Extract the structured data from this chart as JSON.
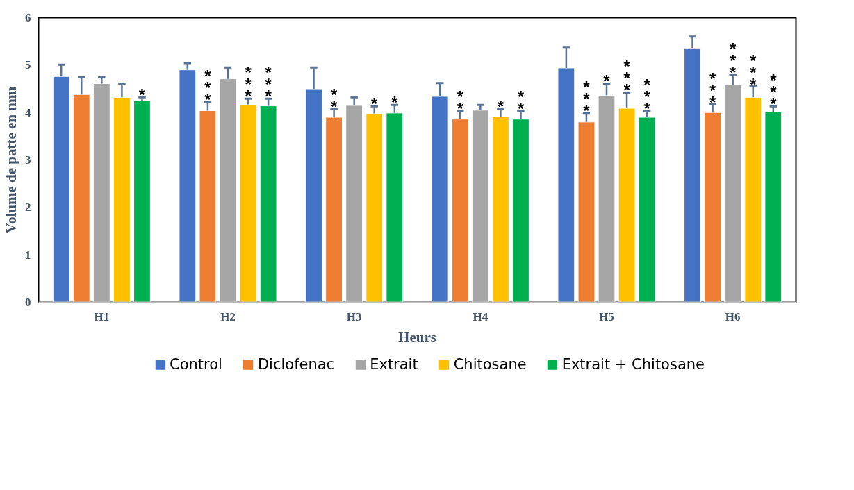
{
  "chart_data": {
    "type": "bar",
    "xlabel": "Heurs",
    "ylabel": "Volume de patte en mm",
    "categories": [
      "H1",
      "H2",
      "H3",
      "H4",
      "H5",
      "H6"
    ],
    "ylim": [
      0,
      6
    ],
    "yticks": [
      0,
      1,
      2,
      3,
      4,
      5,
      6
    ],
    "grid": false,
    "legend": "bottom",
    "series": [
      {
        "name": "Control",
        "color": "#4472c4",
        "values": [
          4.76,
          4.9,
          4.5,
          4.34,
          4.94,
          5.36
        ],
        "errors": [
          [
            4.76,
            5.01
          ],
          [
            4.9,
            5.04
          ],
          [
            4.5,
            4.95
          ],
          [
            4.34,
            4.62
          ],
          [
            4.94,
            5.38
          ],
          [
            5.36,
            5.6
          ]
        ]
      },
      {
        "name": "Diclofenac",
        "color": "#ed7d31",
        "values": [
          4.38,
          4.04,
          3.9,
          3.86,
          3.8,
          4.0
        ],
        "errors": [
          [
            4.38,
            4.74
          ],
          [
            4.04,
            4.22
          ],
          [
            3.9,
            4.08
          ],
          [
            3.86,
            4.03
          ],
          [
            3.8,
            3.99
          ],
          [
            4.0,
            4.17
          ]
        ],
        "value_labels": [
          null,
          "***",
          "**",
          "**",
          "***",
          "***"
        ]
      },
      {
        "name": "Extrait",
        "color": "#a5a5a5",
        "values": [
          4.61,
          4.71,
          4.15,
          4.05,
          4.36,
          4.58
        ],
        "errors": [
          [
            4.61,
            4.74
          ],
          [
            4.71,
            4.95
          ],
          [
            4.15,
            4.32
          ],
          [
            4.05,
            4.16
          ],
          [
            4.36,
            4.61
          ],
          [
            4.58,
            4.79
          ]
        ],
        "value_labels": [
          null,
          null,
          null,
          null,
          "*",
          "***"
        ]
      },
      {
        "name": "Chitosane",
        "color": "#ffc000",
        "values": [
          4.32,
          4.17,
          3.98,
          3.91,
          4.09,
          4.32
        ],
        "errors": [
          [
            4.32,
            4.61
          ],
          [
            4.17,
            4.29
          ],
          [
            3.98,
            4.13
          ],
          [
            3.91,
            4.08
          ],
          [
            4.09,
            4.42
          ],
          [
            4.32,
            4.55
          ]
        ],
        "value_labels": [
          null,
          "***",
          "*",
          "*",
          "***",
          "***"
        ]
      },
      {
        "name": "Extrait + Chitosane",
        "color": "#00b050",
        "values": [
          4.25,
          4.14,
          3.99,
          3.86,
          3.9,
          4.01
        ],
        "errors": [
          [
            4.25,
            4.32
          ],
          [
            4.14,
            4.29
          ],
          [
            3.99,
            4.16
          ],
          [
            3.86,
            4.03
          ],
          [
            3.9,
            4.03
          ],
          [
            4.01,
            4.13
          ]
        ],
        "value_labels": [
          "*",
          "***",
          "*",
          "**",
          "***",
          "***"
        ]
      }
    ]
  }
}
